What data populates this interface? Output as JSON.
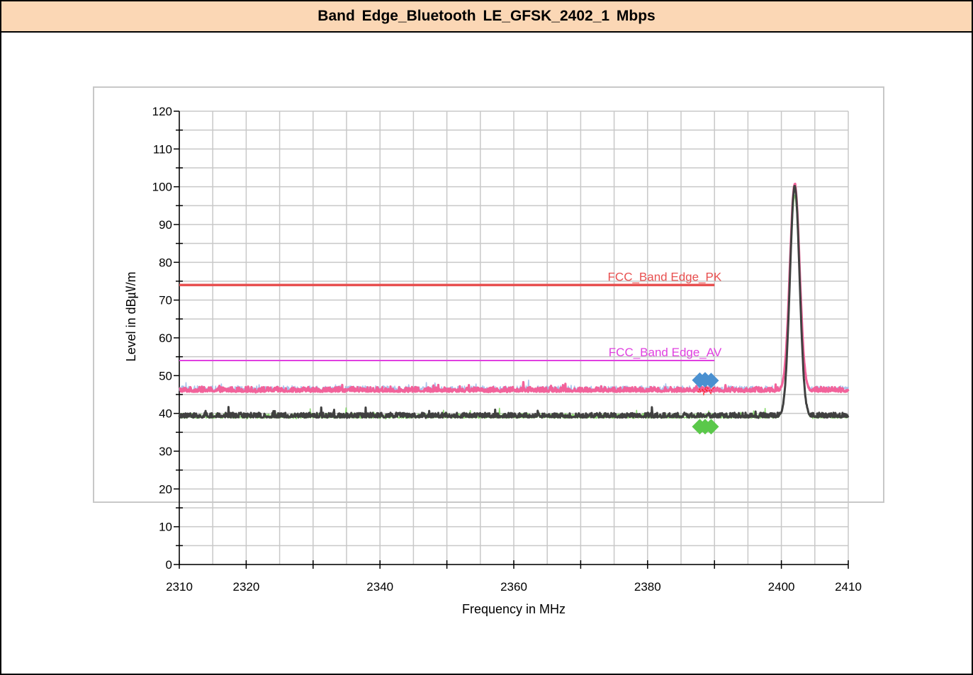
{
  "title": "Band  Edge_Bluetooth  LE_GFSK_2402_1  Mbps",
  "chart_data": {
    "type": "line",
    "xlabel": "Frequency in MHz",
    "ylabel": "Level in dB㎶/m",
    "xlim": [
      2310,
      2410
    ],
    "ylim": [
      0,
      120
    ],
    "x_ticks": [
      "2310",
      "2320",
      "2340",
      "2360",
      "2380",
      "2400",
      "2410"
    ],
    "y_ticks": [
      "0",
      "10",
      "20",
      "30",
      "40",
      "50",
      "60",
      "70",
      "80",
      "90",
      "100",
      "110",
      "120"
    ],
    "grid": true,
    "limit_lines": [
      {
        "label": "FCC_Band Edge_PK",
        "y": 74,
        "x_range": [
          2310,
          2390
        ],
        "color": "#e85050"
      },
      {
        "label": "FCC_Band Edge_AV",
        "y": 54,
        "x_range": [
          2310,
          2390
        ],
        "color": "#e040e0"
      }
    ],
    "series": [
      {
        "trace": "peak-trace",
        "color": "#f2629a",
        "noise_floor": 46,
        "peak_x": 2402,
        "peak_y": 100.8
      },
      {
        "trace": "peak-trace-secondary",
        "color": "#9ab8e8",
        "noise_floor": 46.3,
        "peak_x": 2402,
        "peak_y": 100.5
      },
      {
        "trace": "average-trace",
        "color": "#404040",
        "noise_floor": 39.2,
        "peak_x": 2402,
        "peak_y": 100.3
      },
      {
        "trace": "average-trace-secondary",
        "color": "#7ad65a",
        "noise_floor": 39,
        "peak_x": 2402,
        "peak_y": 97.5
      }
    ],
    "markers": [
      {
        "name": "peak-marker",
        "x": 2387.8,
        "y": 48.8,
        "color": "#4a90d0"
      },
      {
        "name": "peak-marker",
        "x": 2388.6,
        "y": 48.9,
        "color": "#4a90d0"
      },
      {
        "name": "peak-marker",
        "x": 2389.5,
        "y": 48.7,
        "color": "#4a90d0"
      },
      {
        "name": "average-marker",
        "x": 2387.8,
        "y": 36.5,
        "color": "#5ac84a"
      },
      {
        "name": "average-marker",
        "x": 2388.6,
        "y": 36.5,
        "color": "#5ac84a"
      },
      {
        "name": "average-marker",
        "x": 2389.5,
        "y": 36.5,
        "color": "#5ac84a"
      }
    ]
  }
}
